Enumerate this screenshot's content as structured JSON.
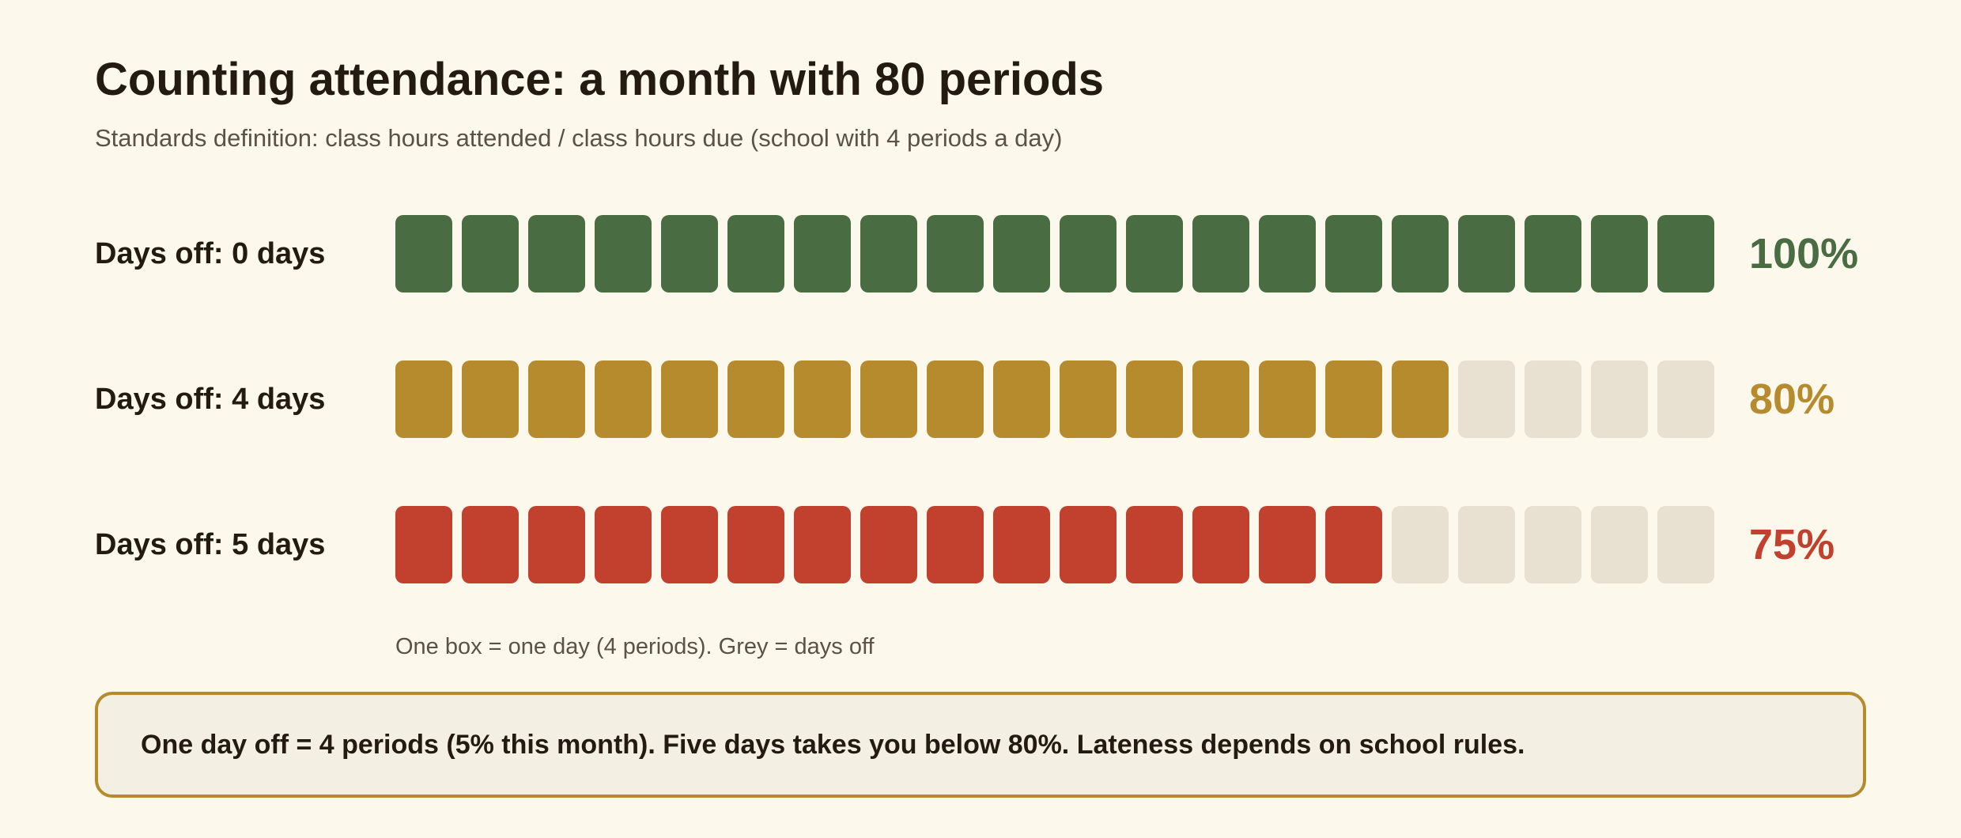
{
  "title": "Counting attendance: a month with 80 periods",
  "subtitle": "Standards definition: class hours attended / class hours due (school with 4 periods a day)",
  "footnote": "One box = one day (4 periods). Grey = days off",
  "callout": "One day off = 4 periods (5% this month). Five days takes you below 80%. Lateness depends on school rules.",
  "colors": {
    "background": "#fcf8ec",
    "absent_box": "#e8e1d2",
    "callout_border": "#b58b2d",
    "callout_background": "#f3efe3"
  },
  "chart_data": {
    "type": "waffle",
    "total_boxes": 20,
    "periods_per_box": 4,
    "rows": [
      {
        "label": "Days off: 0 days",
        "days_off": 0,
        "days_present": 20,
        "percent_label": "100%",
        "value": 100,
        "color": "#4a6c43"
      },
      {
        "label": "Days off: 4 days",
        "days_off": 4,
        "days_present": 16,
        "percent_label": "80%",
        "value": 80,
        "color": "#b58b2d"
      },
      {
        "label": "Days off: 5 days",
        "days_off": 5,
        "days_present": 15,
        "percent_label": "75%",
        "value": 75,
        "color": "#c1402e"
      }
    ]
  }
}
